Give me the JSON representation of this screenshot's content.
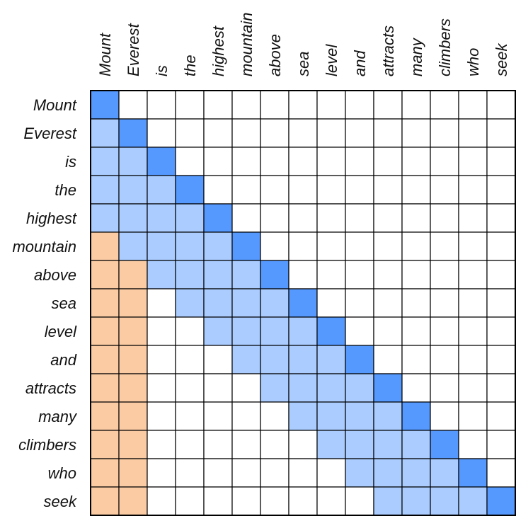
{
  "tokens": [
    "Mount",
    "Everest",
    "is",
    "the",
    "highest",
    "mountain",
    "above",
    "sea",
    "level",
    "and",
    "attracts",
    "many",
    "climbers",
    "who",
    "seek"
  ],
  "colors": {
    "diagonal": "#5599ff",
    "window": "#aaccff",
    "global": "#fbcca4",
    "empty": "#ffffff",
    "grid": "#000000"
  },
  "attention": {
    "global_token_count": 2,
    "window_size": 4
  }
}
